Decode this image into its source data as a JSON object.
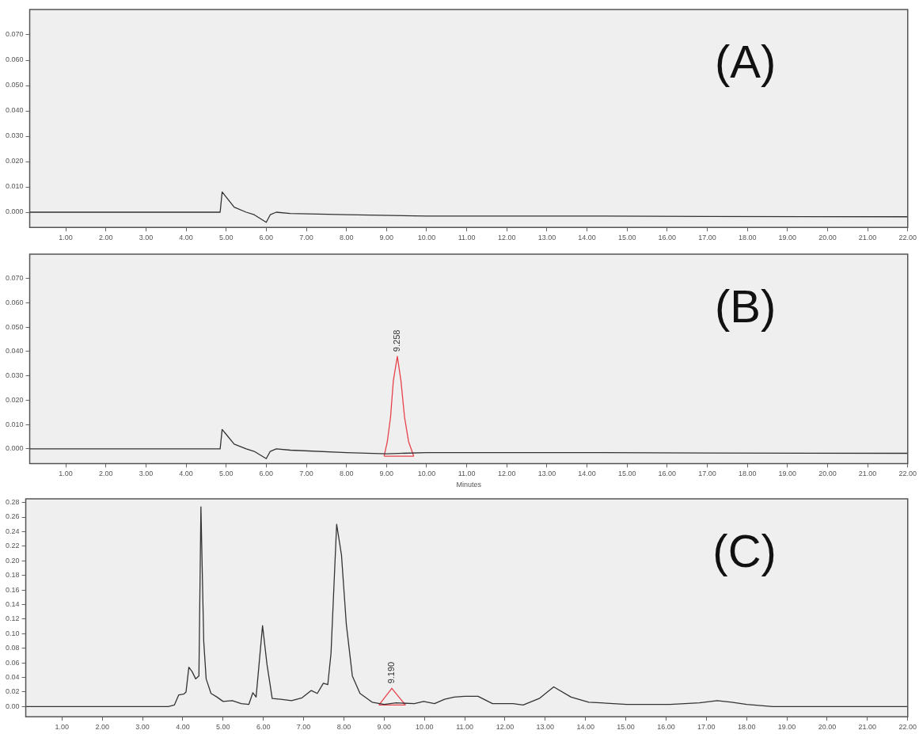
{
  "chart_data": [
    {
      "type": "line",
      "title": "(A)",
      "xlim": [
        0.1,
        22.0
      ],
      "ylim": [
        -0.006,
        0.08
      ],
      "xticks": [
        {
          "value": 1,
          "label": "1.00"
        },
        {
          "value": 2,
          "label": "2.00"
        },
        {
          "value": 3,
          "label": "3.00"
        },
        {
          "value": 4,
          "label": "4.00"
        },
        {
          "value": 5,
          "label": "5.00"
        },
        {
          "value": 6,
          "label": "6.00"
        },
        {
          "value": 7,
          "label": "7.00"
        },
        {
          "value": 8,
          "label": "8.00"
        },
        {
          "value": 9,
          "label": "9.00"
        },
        {
          "value": 10,
          "label": "10.00"
        },
        {
          "value": 11,
          "label": "11.00"
        },
        {
          "value": 12,
          "label": "12.00"
        },
        {
          "value": 13,
          "label": "13.00"
        },
        {
          "value": 14,
          "label": "14.00"
        },
        {
          "value": 15,
          "label": "15.00"
        },
        {
          "value": 16,
          "label": "16.00"
        },
        {
          "value": 17,
          "label": "17.00"
        },
        {
          "value": 18,
          "label": "18.00"
        },
        {
          "value": 19,
          "label": "19.00"
        },
        {
          "value": 20,
          "label": "20.00"
        },
        {
          "value": 21,
          "label": "21.00"
        },
        {
          "value": 22,
          "label": "22.00"
        }
      ],
      "yticks": [
        {
          "value": 0,
          "label": "0.000"
        },
        {
          "value": 0.01,
          "label": "0.010"
        },
        {
          "value": 0.02,
          "label": "0.020"
        },
        {
          "value": 0.03,
          "label": "0.030"
        },
        {
          "value": 0.04,
          "label": "0.040"
        },
        {
          "value": 0.05,
          "label": "0.050"
        },
        {
          "value": 0.06,
          "label": "0.060"
        },
        {
          "value": 0.07,
          "label": "0.070"
        }
      ],
      "series": [
        {
          "color": "#333333",
          "x": [
            0.1,
            4.85,
            4.9,
            5.0,
            5.2,
            5.5,
            5.7,
            6.0,
            6.1,
            6.25,
            6.6,
            8.0,
            10.0,
            14.0,
            17.0,
            22.0
          ],
          "values": [
            0,
            0,
            0.008,
            0.006,
            0.002,
            0,
            -0.001,
            -0.004,
            -0.001,
            0,
            -0.0005,
            -0.001,
            -0.0015,
            -0.0015,
            -0.0017,
            -0.0018
          ]
        }
      ]
    },
    {
      "type": "line",
      "title": "(B)",
      "xlabel": "Minutes",
      "xlim": [
        0.1,
        22.0
      ],
      "ylim": [
        -0.006,
        0.08
      ],
      "xticks": [
        {
          "value": 1,
          "label": "1.00"
        },
        {
          "value": 2,
          "label": "2.00"
        },
        {
          "value": 3,
          "label": "3.00"
        },
        {
          "value": 4,
          "label": "4.00"
        },
        {
          "value": 5,
          "label": "5.00"
        },
        {
          "value": 6,
          "label": "6.00"
        },
        {
          "value": 7,
          "label": "7.00"
        },
        {
          "value": 8,
          "label": "8.00"
        },
        {
          "value": 9,
          "label": "9.00"
        },
        {
          "value": 10,
          "label": "10.00"
        },
        {
          "value": 11,
          "label": "11.00"
        },
        {
          "value": 12,
          "label": "12.00"
        },
        {
          "value": 13,
          "label": "13.00"
        },
        {
          "value": 14,
          "label": "14.00"
        },
        {
          "value": 15,
          "label": "15.00"
        },
        {
          "value": 16,
          "label": "16.00"
        },
        {
          "value": 17,
          "label": "17.00"
        },
        {
          "value": 18,
          "label": "18.00"
        },
        {
          "value": 19,
          "label": "19.00"
        },
        {
          "value": 20,
          "label": "20.00"
        },
        {
          "value": 21,
          "label": "21.00"
        },
        {
          "value": 22,
          "label": "22.00"
        }
      ],
      "yticks": [
        {
          "value": 0,
          "label": "0.000"
        },
        {
          "value": 0.01,
          "label": "0.010"
        },
        {
          "value": 0.02,
          "label": "0.020"
        },
        {
          "value": 0.03,
          "label": "0.030"
        },
        {
          "value": 0.04,
          "label": "0.040"
        },
        {
          "value": 0.05,
          "label": "0.050"
        },
        {
          "value": 0.06,
          "label": "0.060"
        },
        {
          "value": 0.07,
          "label": "0.070"
        }
      ],
      "series": [
        {
          "color": "#333333",
          "x": [
            0.1,
            4.85,
            4.9,
            5.0,
            5.2,
            5.5,
            5.7,
            6.0,
            6.1,
            6.25,
            6.6,
            8.0,
            9.0,
            10.0,
            14.0,
            17.0,
            22.0
          ],
          "values": [
            0,
            0,
            0.008,
            0.006,
            0.002,
            0,
            -0.001,
            -0.004,
            -0.001,
            0,
            -0.0005,
            -0.0015,
            -0.002,
            -0.0015,
            -0.0015,
            -0.0017,
            -0.0018
          ]
        },
        {
          "color": "#e8404a",
          "x": [
            8.94,
            9.02,
            9.1,
            9.17,
            9.27,
            9.36,
            9.45,
            9.55,
            9.68
          ],
          "values": [
            -0.003,
            0.003,
            0.013,
            0.028,
            0.038,
            0.028,
            0.013,
            0.003,
            -0.003
          ]
        },
        {
          "color": "#e8404a",
          "x": [
            8.94,
            9.68
          ],
          "values": [
            -0.003,
            -0.003
          ]
        }
      ],
      "annotations": [
        {
          "text": "9.258",
          "x": 9.27,
          "y": 0.038
        }
      ]
    },
    {
      "type": "line",
      "title": "(C)",
      "xlim": [
        0.1,
        22.0
      ],
      "ylim": [
        -0.014,
        0.285
      ],
      "xticks": [
        {
          "value": 1,
          "label": "1.00"
        },
        {
          "value": 2,
          "label": "2.00"
        },
        {
          "value": 3,
          "label": "3.00"
        },
        {
          "value": 4,
          "label": "4.00"
        },
        {
          "value": 5,
          "label": "5.00"
        },
        {
          "value": 6,
          "label": "6.00"
        },
        {
          "value": 7,
          "label": "7.00"
        },
        {
          "value": 8,
          "label": "8.00"
        },
        {
          "value": 9,
          "label": "9.00"
        },
        {
          "value": 10,
          "label": "10.00"
        },
        {
          "value": 11,
          "label": "11.00"
        },
        {
          "value": 12,
          "label": "12.00"
        },
        {
          "value": 13,
          "label": "13.00"
        },
        {
          "value": 14,
          "label": "14.00"
        },
        {
          "value": 15,
          "label": "15.00"
        },
        {
          "value": 16,
          "label": "16.00"
        },
        {
          "value": 17,
          "label": "17.00"
        },
        {
          "value": 18,
          "label": "18.00"
        },
        {
          "value": 19,
          "label": "19.00"
        },
        {
          "value": 20,
          "label": "20.00"
        },
        {
          "value": 21,
          "label": "21.00"
        },
        {
          "value": 22,
          "label": "22.00"
        }
      ],
      "yticks": [
        {
          "value": 0,
          "label": "0.00"
        },
        {
          "value": 0.02,
          "label": "0.02"
        },
        {
          "value": 0.04,
          "label": "0.04"
        },
        {
          "value": 0.06,
          "label": "0.06"
        },
        {
          "value": 0.08,
          "label": "0.08"
        },
        {
          "value": 0.1,
          "label": "0.10"
        },
        {
          "value": 0.12,
          "label": "0.12"
        },
        {
          "value": 0.14,
          "label": "0.14"
        },
        {
          "value": 0.16,
          "label": "0.16"
        },
        {
          "value": 0.18,
          "label": "0.18"
        },
        {
          "value": 0.2,
          "label": "0.20"
        },
        {
          "value": 0.22,
          "label": "0.22"
        },
        {
          "value": 0.24,
          "label": "0.24"
        },
        {
          "value": 0.26,
          "label": "0.26"
        },
        {
          "value": 0.28,
          "label": "0.28"
        }
      ],
      "series": [
        {
          "color": "#333333",
          "x": [
            0.1,
            3.64,
            3.79,
            3.9,
            4.02,
            4.08,
            4.15,
            4.23,
            4.32,
            4.4,
            4.45,
            4.52,
            4.58,
            4.7,
            4.85,
            5.0,
            5.23,
            5.45,
            5.64,
            5.74,
            5.82,
            5.98,
            6.09,
            6.22,
            6.43,
            6.7,
            6.96,
            7.19,
            7.34,
            7.49,
            7.6,
            7.68,
            7.82,
            7.94,
            8.06,
            8.21,
            8.4,
            8.7,
            9.0,
            9.3,
            9.75,
            9.98,
            10.25,
            10.5,
            10.74,
            11.0,
            11.33,
            11.69,
            12.2,
            12.45,
            12.85,
            13.21,
            13.64,
            14.08,
            15.02,
            16.1,
            16.83,
            17.27,
            17.63,
            18.0,
            18.65,
            22.0
          ],
          "values": [
            0,
            0,
            0.002,
            0.016,
            0.017,
            0.02,
            0.054,
            0.048,
            0.038,
            0.042,
            0.274,
            0.089,
            0.038,
            0.018,
            0.013,
            0.007,
            0.008,
            0.004,
            0.003,
            0.019,
            0.013,
            0.111,
            0.058,
            0.011,
            0.01,
            0.008,
            0.012,
            0.022,
            0.018,
            0.032,
            0.03,
            0.073,
            0.25,
            0.208,
            0.113,
            0.042,
            0.018,
            0.006,
            0.003,
            0.005,
            0.004,
            0.007,
            0.004,
            0.01,
            0.013,
            0.014,
            0.014,
            0.004,
            0.004,
            0.002,
            0.011,
            0.027,
            0.013,
            0.006,
            0.003,
            0.003,
            0.005,
            0.008,
            0.006,
            0.003,
            0,
            0
          ]
        },
        {
          "color": "#e8404a",
          "x": [
            8.87,
            9.19,
            9.53
          ],
          "values": [
            0.002,
            0.025,
            0.002
          ]
        },
        {
          "color": "#e8404a",
          "x": [
            8.87,
            9.53
          ],
          "values": [
            0.002,
            0.002
          ]
        }
      ],
      "annotations": [
        {
          "text": "9.190",
          "x": 9.19,
          "y": 0.025
        }
      ]
    }
  ]
}
